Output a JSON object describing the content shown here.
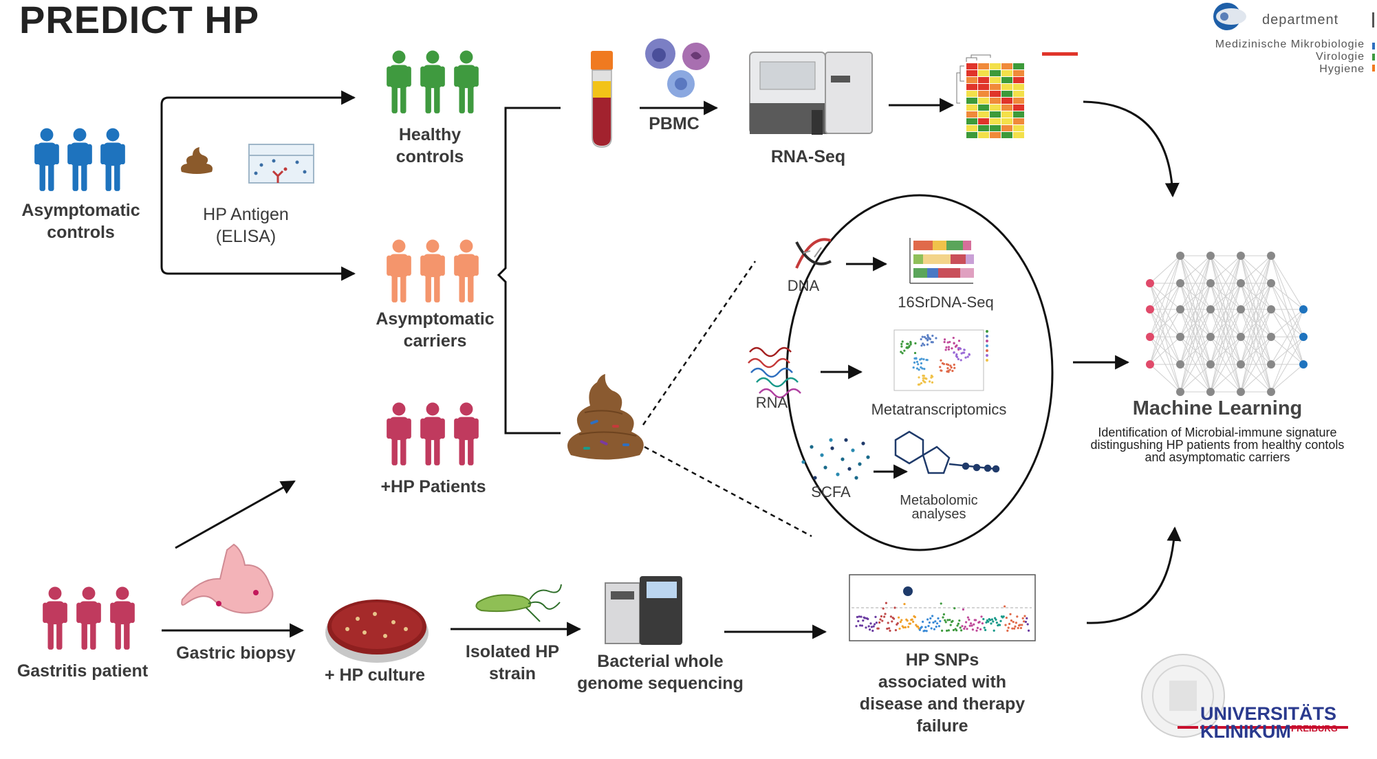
{
  "title": "PREDICT HP",
  "groups": {
    "asymptomatic_controls": [
      "Asymptomatic",
      "controls"
    ],
    "healthy_controls": [
      "Healthy",
      "controls"
    ],
    "asymptomatic_carriers": [
      "Asymptomatic",
      "carriers"
    ],
    "hp_patients": "+HP Patients",
    "gastritis_patient": "Gastritis patient"
  },
  "steps": {
    "hp_antigen": [
      "HP Antigen",
      "(ELISA)"
    ],
    "pbmc": "PBMC",
    "rna_seq": "RNA-Seq",
    "gastric_biopsy": "Gastric biopsy",
    "hp_culture": "+ HP culture",
    "isolated_strain": [
      "Isolated HP",
      "strain"
    ],
    "bacterial_wgs": [
      "Bacterial whole",
      "genome sequencing"
    ],
    "hp_snps": [
      "HP SNPs",
      "associated with",
      "disease and therapy",
      "failure"
    ]
  },
  "omics": {
    "dna": "DNA",
    "seq16s": "16SrDNA-Seq",
    "rna": "RNA",
    "metatranscriptomics": "Metatranscriptomics",
    "scfa": "SCFA",
    "metabolomic": [
      "Metabolomic",
      "analyses"
    ]
  },
  "machine_learning": {
    "title": "Machine Learning",
    "description": [
      "Identification of Microbial-immune signature",
      "distingushing HP patients from healthy contols",
      "and asymptomatic carriers"
    ]
  },
  "logo": {
    "department": "department",
    "lines": [
      "Medizinische Mikrobiologie",
      "Virologie",
      "Hygiene"
    ],
    "university": [
      "UNIVERSITÄTS",
      "KLINIKUM",
      "FREIBURG"
    ]
  },
  "colors": {
    "blue_people": "#1e73be",
    "green_people": "#3f9a3f",
    "orange_people": "#f4956c",
    "red_people": "#c03a5e",
    "heat_red": "#e0342a",
    "heat_yellow": "#f3e04a",
    "heat_green": "#3c9a3a"
  },
  "heatmap_cells": [
    [
      "r",
      "o",
      "y",
      "o",
      "g"
    ],
    [
      "r",
      "y",
      "g",
      "y",
      "o"
    ],
    [
      "o",
      "r",
      "y",
      "g",
      "r"
    ],
    [
      "r",
      "r",
      "o",
      "y",
      "y"
    ],
    [
      "y",
      "o",
      "r",
      "g",
      "y"
    ],
    [
      "g",
      "y",
      "o",
      "r",
      "o"
    ],
    [
      "y",
      "g",
      "y",
      "o",
      "r"
    ],
    [
      "o",
      "y",
      "g",
      "y",
      "g"
    ],
    [
      "g",
      "r",
      "y",
      "y",
      "o"
    ],
    [
      "y",
      "g",
      "g",
      "o",
      "y"
    ],
    [
      "g",
      "y",
      "o",
      "g",
      "y"
    ]
  ],
  "stacked_bars": [
    [
      "#e06a4a",
      "#f0c24a",
      "#5aa55a",
      "#d66f9a"
    ],
    [
      "#8fc05a",
      "#f3d48a",
      "#c94f5a",
      "#c9a0d6"
    ],
    [
      "#5aa55a",
      "#4a78c4",
      "#c94f5a",
      "#e0a0c0"
    ]
  ]
}
